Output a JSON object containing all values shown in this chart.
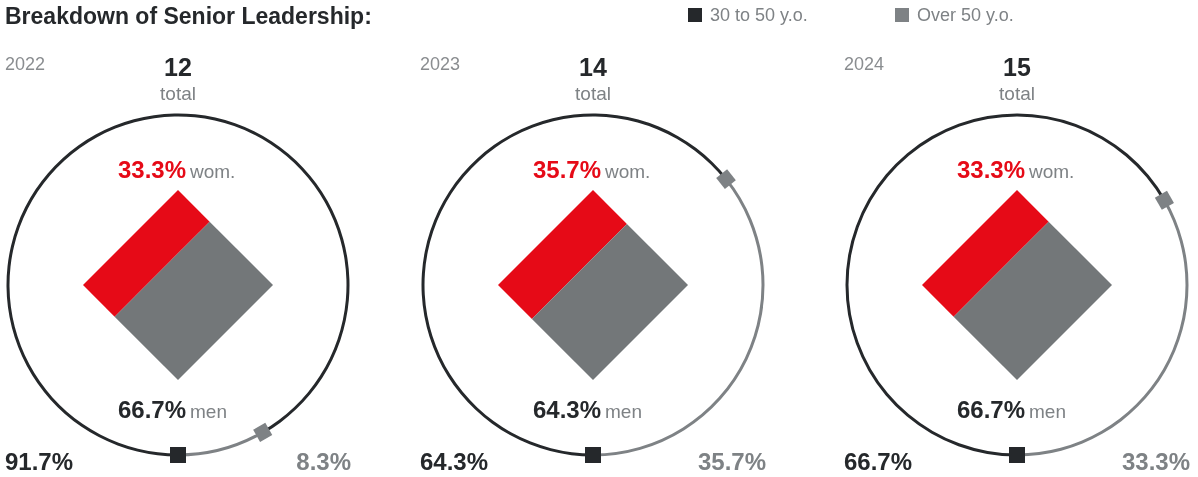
{
  "chart_data": [
    {
      "type": "other",
      "title": "Breakdown of Senior Leadership:"
    },
    {
      "type": "donut",
      "title": "2022",
      "annotations": [
        "12",
        "total"
      ],
      "categories": [
        "30 to 50 y.o.",
        "Over 50 y.o."
      ],
      "values": [
        91.7,
        8.3
      ],
      "value_labels": [
        "91.7%",
        "8.3%"
      ],
      "colors": [
        "#25282b",
        "#7e8285"
      ],
      "legend": "top right"
    },
    {
      "type": "other",
      "categories": [
        "wom.",
        "men"
      ],
      "values": [
        33.3,
        66.7
      ],
      "value_labels": [
        "33.3%",
        "66.7%"
      ],
      "colors": [
        "#e60a17",
        "#737779"
      ]
    },
    {
      "type": "donut",
      "title": "2023",
      "annotations": [
        "14",
        "total"
      ],
      "categories": [
        null,
        null
      ],
      "values": [
        64.3,
        35.7
      ],
      "value_labels": [
        "64.3%",
        "35.7%"
      ],
      "colors": [
        "#25282b",
        "#7e8285"
      ]
    },
    {
      "type": "other",
      "categories": [
        "wom.",
        "men"
      ],
      "values": [
        35.7,
        64.3
      ],
      "value_labels": [
        "35.7%",
        "64.3%"
      ],
      "colors": [
        "#e60a17",
        "#737779"
      ]
    },
    {
      "type": "donut",
      "title": "2024",
      "annotations": [
        "15",
        "total"
      ],
      "categories": [
        null,
        null
      ],
      "values": [
        66.7,
        33.3
      ],
      "value_labels": [
        "66.7%",
        "33.3%"
      ],
      "colors": [
        "#25282b",
        "#7e8285"
      ]
    },
    {
      "type": "other",
      "categories": [
        "wom.",
        "men"
      ],
      "values": [
        33.3,
        66.7
      ],
      "value_labels": [
        "33.3%",
        "66.7%"
      ],
      "colors": [
        "#e60a17",
        "#737779"
      ]
    }
  ]
}
